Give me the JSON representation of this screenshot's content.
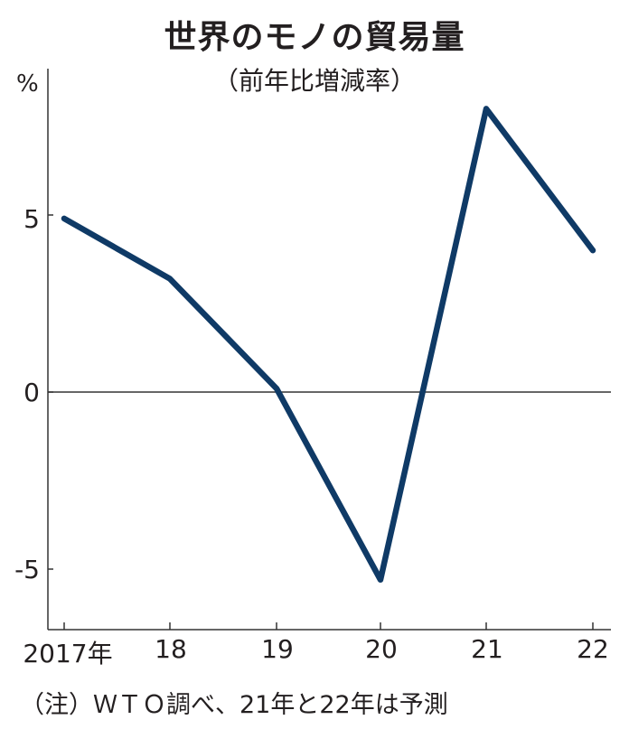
{
  "chart_data": {
    "type": "line",
    "title": "世界のモノの貿易量",
    "subtitle": "（前年比増減率）",
    "xlabel": "",
    "ylabel": "%",
    "categories": [
      "2017年",
      "18",
      "19",
      "20",
      "21",
      "22"
    ],
    "x": [
      2017,
      2018,
      2019,
      2020,
      2021,
      2022
    ],
    "series": [
      {
        "name": "世界のモノの貿易量 前年比増減率",
        "values": [
          4.9,
          3.2,
          0.1,
          -5.3,
          8.0,
          4.0
        ],
        "color": "#0f3a66"
      }
    ],
    "yticks": [
      5,
      0,
      -5
    ],
    "ytick_labels": [
      "5",
      "0",
      "-5"
    ],
    "ylim": [
      -6.7,
      9.3
    ],
    "grid": false,
    "zero_line": true,
    "legend": null,
    "annotation": "（注）ＷＴＯ調べ、21年と22年は予測"
  },
  "header": {
    "title": "世界のモノの貿易量",
    "subtitle": "（前年比増減率）",
    "unit": "%"
  },
  "axes": {
    "y_labels": [
      "5",
      "0",
      "-5"
    ],
    "x_labels": [
      "2017年",
      "18",
      "19",
      "20",
      "21",
      "22"
    ]
  },
  "footer": {
    "note": "（注）ＷＴＯ調べ、21年と22年は予測"
  }
}
